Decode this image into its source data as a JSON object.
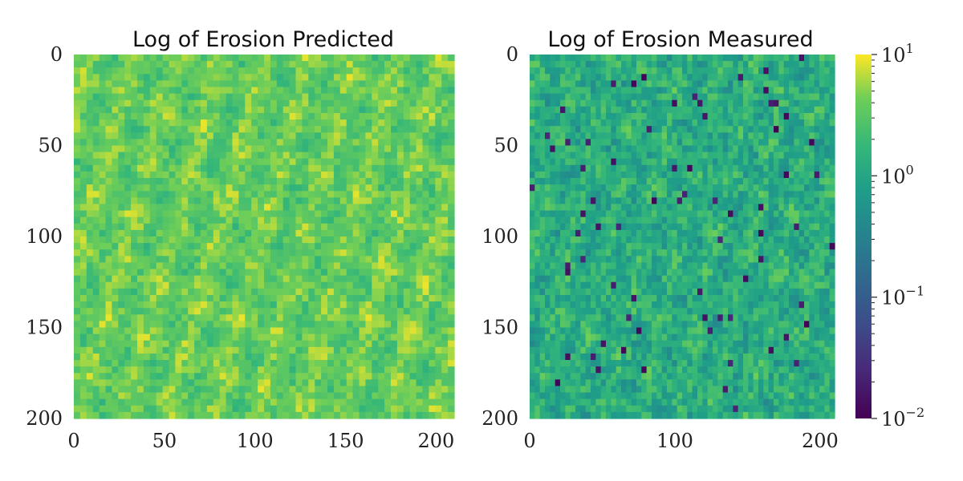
{
  "chart_data": [
    {
      "type": "heatmap",
      "title": "Log of Erosion Predicted",
      "xlim": [
        0,
        210
      ],
      "ylim": [
        200,
        0
      ],
      "xticks": [
        0,
        50,
        100,
        150,
        200
      ],
      "yticks": [
        0,
        50,
        100,
        150,
        200
      ],
      "xtick_labels": [
        "0",
        "50",
        "100",
        "150",
        "200"
      ],
      "ytick_labels": [
        "0",
        "50",
        "100",
        "150",
        "200"
      ],
      "colormap": "viridis",
      "color_scale": "log",
      "log10_mean": 0.55,
      "log10_spread": 0.22
    },
    {
      "type": "heatmap",
      "title": "Log of Erosion Measured",
      "xlim": [
        0,
        210
      ],
      "ylim": [
        200,
        0
      ],
      "xticks": [
        0,
        100,
        200
      ],
      "yticks": [
        0,
        50,
        100,
        150,
        200
      ],
      "xtick_labels": [
        "0",
        "100",
        "200"
      ],
      "ytick_labels": [
        "0",
        "50",
        "100",
        "150",
        "200"
      ],
      "colormap": "viridis",
      "color_scale": "log",
      "log10_mean": 0.1,
      "log10_spread": 0.35
    }
  ],
  "colorbar": {
    "scale": "log",
    "range": [
      0.01,
      10
    ],
    "ticks": [
      {
        "base": "10",
        "exp": "1",
        "value": 10
      },
      {
        "base": "10",
        "exp": "0",
        "value": 1
      },
      {
        "base": "10",
        "exp": "−1",
        "value": 0.1
      },
      {
        "base": "10",
        "exp": "−2",
        "value": 0.01
      }
    ]
  }
}
